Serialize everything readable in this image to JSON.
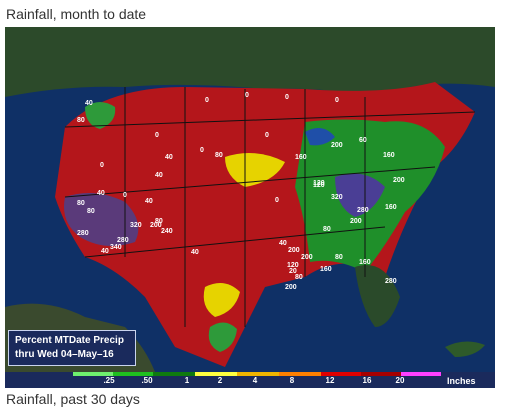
{
  "captions": {
    "top": "Rainfall, month to date",
    "bottom": "Rainfall, past 30 days"
  },
  "legend": {
    "line1": "Percent MTDate Precip",
    "line2": "thru Wed 04–May–16"
  },
  "scale": {
    "ticks": [
      ".25",
      ".50",
      "1",
      "2",
      "4",
      "8",
      "12",
      "16",
      "20"
    ],
    "unit": "Inches",
    "colors": [
      "#6ef06e",
      "#1fc01f",
      "#0f7a0f",
      "#ffff40",
      "#f0b400",
      "#ff7f00",
      "#e00000",
      "#a50000",
      "#ff40ff"
    ]
  },
  "map_labels": [
    "40",
    "80",
    "0",
    "0",
    "0",
    "0",
    "0",
    "0",
    "0",
    "0",
    "80",
    "40",
    "40",
    "80",
    "80",
    "0",
    "40",
    "80",
    "320",
    "200",
    "280",
    "240",
    "280",
    "340",
    "40",
    "40",
    "160",
    "120",
    "200",
    "60",
    "160",
    "200",
    "160",
    "120",
    "320",
    "280",
    "200",
    "80",
    "80",
    "160",
    "40",
    "120",
    "80",
    "280",
    "200",
    "200",
    "160",
    "200",
    "40",
    "0",
    "20"
  ]
}
